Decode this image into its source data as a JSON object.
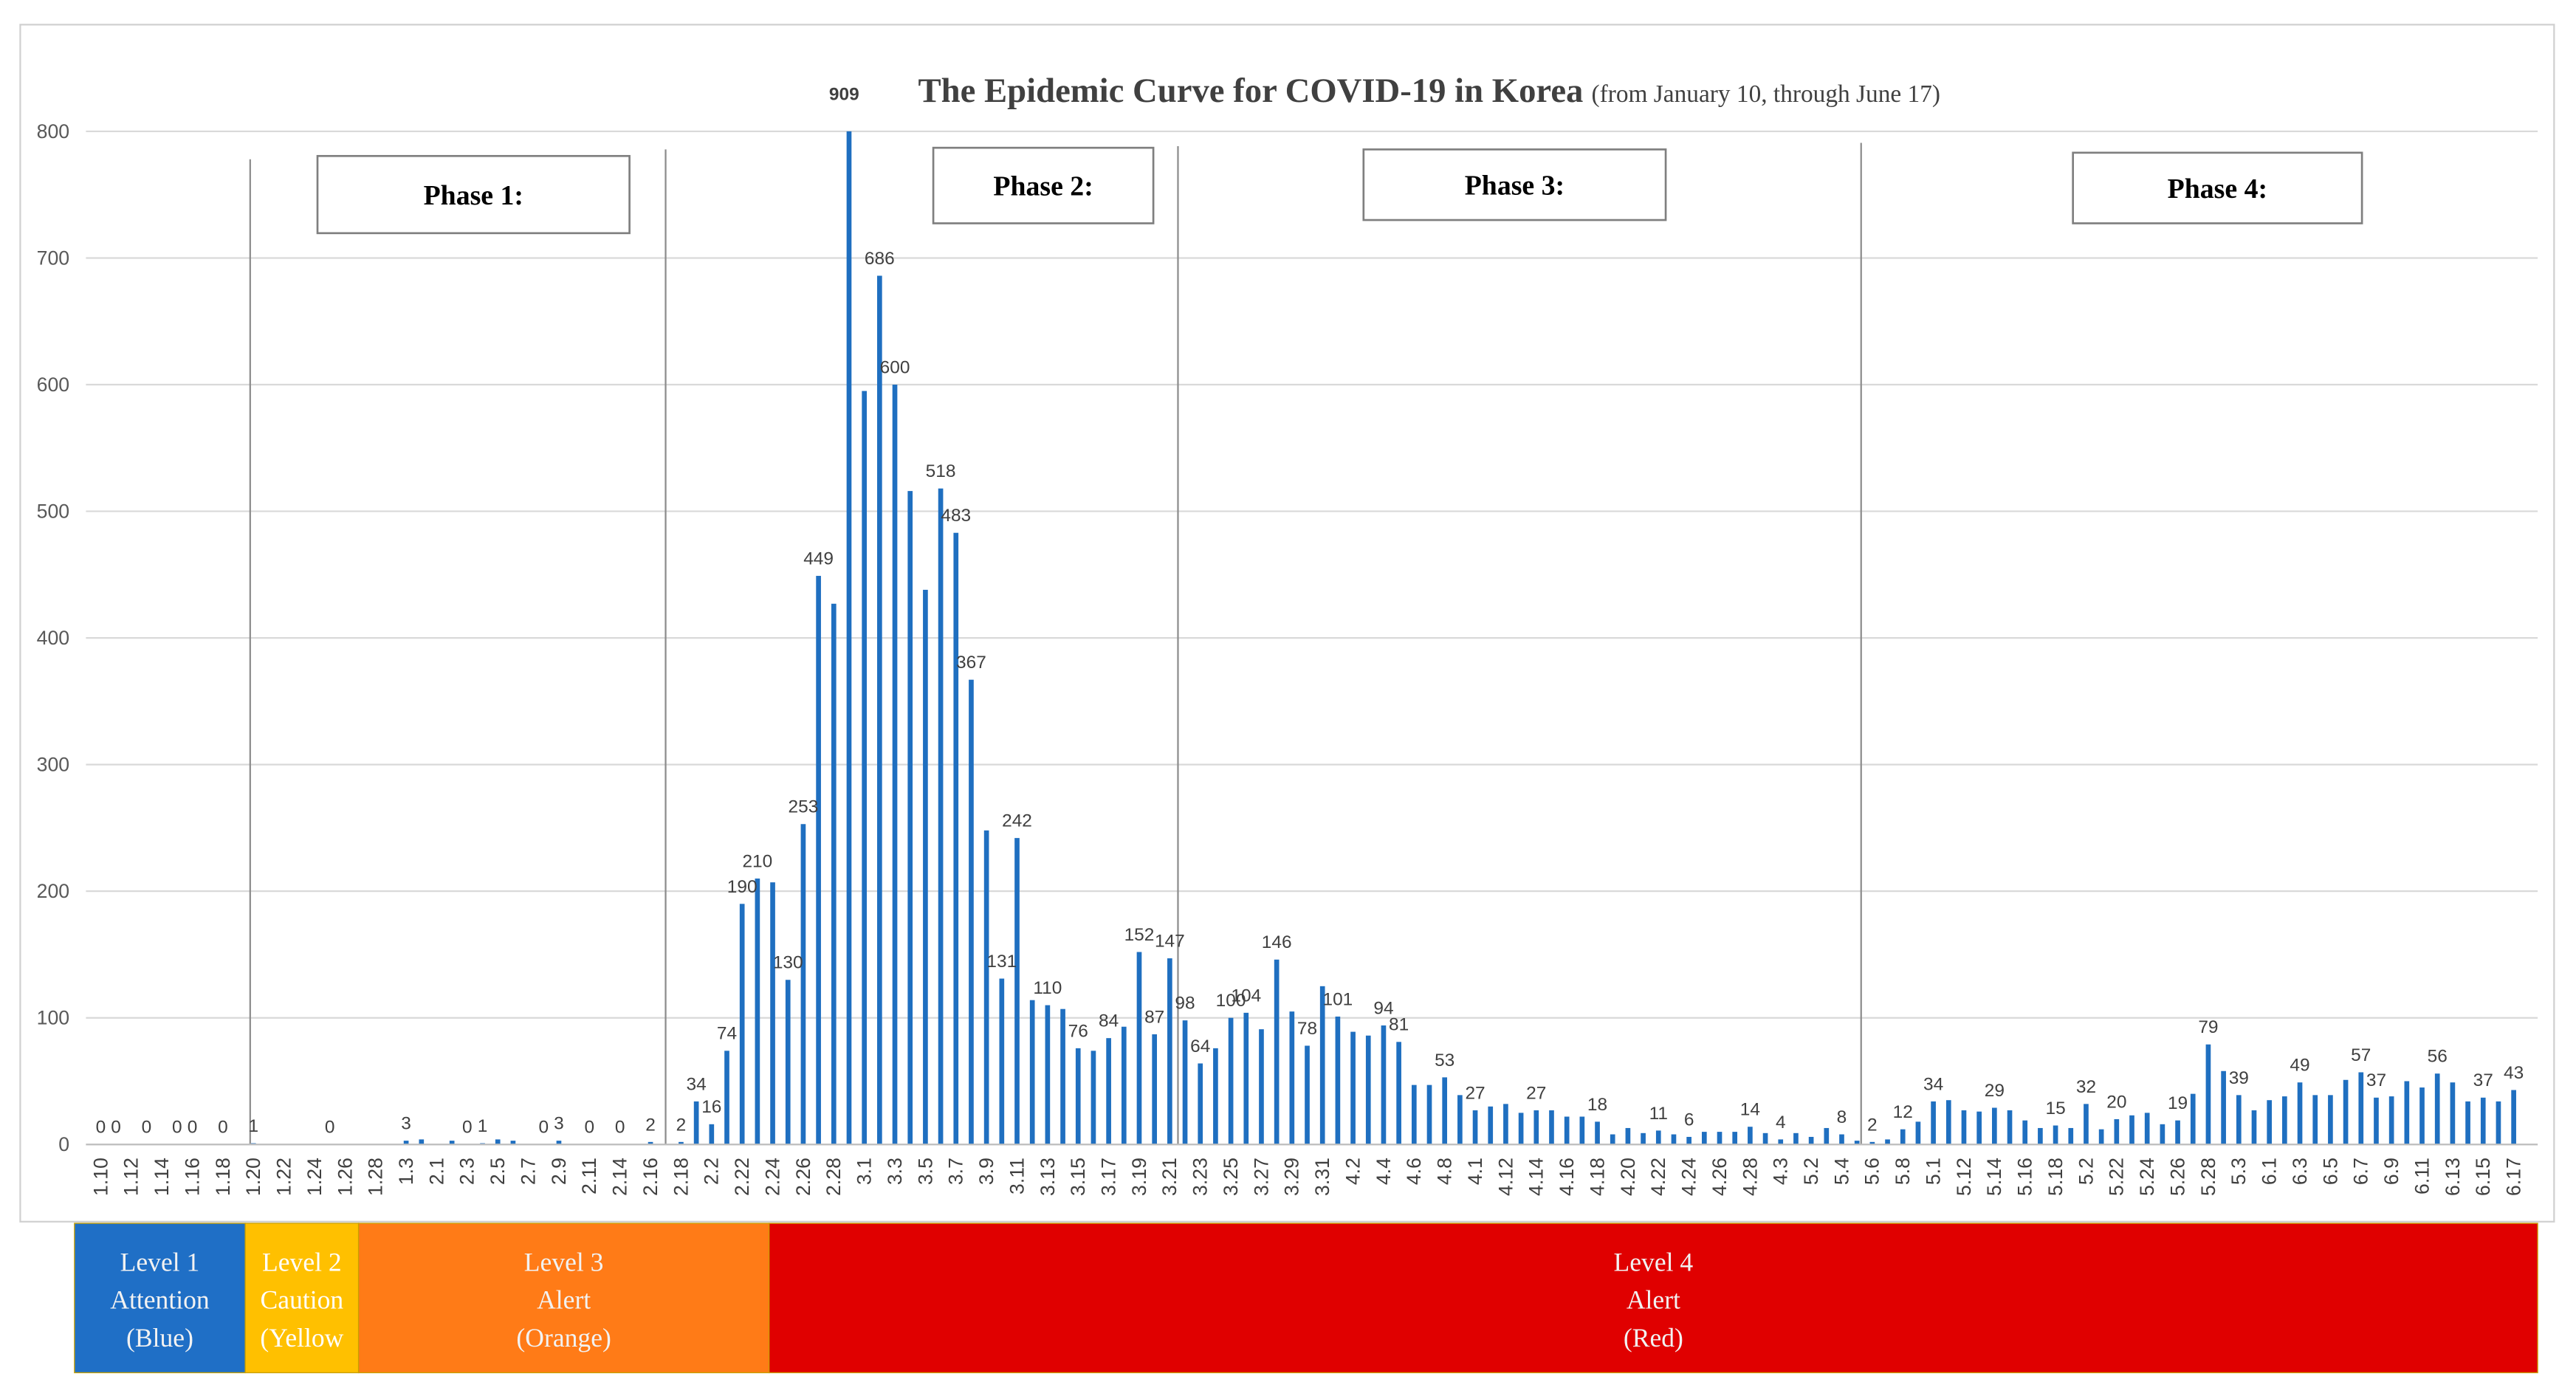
{
  "chart_data": {
    "type": "bar",
    "title": "The Epidemic Curve for COVID-19 in Korea",
    "subtitle": "(from January 10, through June 17)",
    "color": "#1f6fc0",
    "ylim": [
      0,
      800
    ],
    "yticks": [
      0,
      100,
      200,
      300,
      400,
      500,
      600,
      700,
      800
    ],
    "grid": true,
    "phases": [
      "Phase 1:",
      "Phase 2:",
      "Phase 3:",
      "Phase 4:"
    ],
    "alert_levels": [
      {
        "lines": [
          "Level 1",
          "Attention",
          "(Blue)"
        ],
        "color": "#1f6fc6"
      },
      {
        "lines": [
          "Level 2",
          "Caution",
          "(Yellow"
        ],
        "color": "#ffc000"
      },
      {
        "lines": [
          "Level 3",
          "Alert",
          "(Orange)"
        ],
        "color": "#ff7b17"
      },
      {
        "lines": [
          "Level 4",
          "Alert",
          "(Red)"
        ],
        "color": "#e00000"
      }
    ],
    "categories": [
      "1.10",
      null,
      "1.12",
      null,
      "1.14",
      null,
      "1.16",
      null,
      "1.18",
      null,
      "1.20",
      null,
      "1.22",
      null,
      "1.24",
      null,
      "1.26",
      null,
      "1.28",
      null,
      "1.3",
      null,
      "2.1",
      null,
      "2.3",
      null,
      "2.5",
      null,
      "2.7",
      null,
      "2.9",
      null,
      "2.11",
      null,
      "2.14",
      null,
      "2.16",
      null,
      "2.18",
      null,
      "2.2",
      null,
      "2.22",
      null,
      "2.24",
      null,
      "2.26",
      null,
      "2.28",
      null,
      "3.1",
      null,
      "3.3",
      null,
      "3.5",
      null,
      "3.7",
      null,
      "3.9",
      null,
      "3.11",
      null,
      "3.13",
      null,
      "3.15",
      null,
      "3.17",
      null,
      "3.19",
      null,
      "3.21",
      null,
      "3.23",
      null,
      "3.25",
      null,
      "3.27",
      null,
      "3.29",
      null,
      "3.31",
      null,
      "4.2",
      null,
      "4.4",
      null,
      "4.6",
      null,
      "4.8",
      null,
      "4.1",
      null,
      "4.12",
      null,
      "4.14",
      null,
      "4.16",
      null,
      "4.18",
      null,
      "4.20",
      null,
      "4.22",
      null,
      "4.24",
      null,
      "4.26",
      null,
      "4.28",
      null,
      "4.3",
      null,
      "5.2",
      null,
      "5.4",
      null,
      "5.6",
      null,
      "5.8",
      null,
      "5.1",
      null,
      "5.12",
      null,
      "5.14",
      null,
      "5.16",
      null,
      "5.18",
      null,
      "5.2",
      null,
      "5.22",
      null,
      "5.24",
      null,
      "5.26",
      null,
      "5.28",
      null,
      "5.3",
      null,
      "6.1",
      null,
      "6.3",
      null,
      "6.5",
      null,
      "6.7",
      null,
      "6.9",
      null,
      "6.11",
      null,
      "6.13",
      null,
      "6.15",
      null,
      "6.17"
    ],
    "values": [
      0,
      0,
      0,
      0,
      0,
      0,
      0,
      0,
      0,
      0,
      1,
      0,
      0,
      0,
      0,
      0,
      0,
      0,
      0,
      0,
      3,
      4,
      0,
      3,
      0,
      1,
      4,
      3,
      0,
      0,
      3,
      0,
      0,
      0,
      0,
      0,
      2,
      0,
      2,
      34,
      16,
      74,
      190,
      210,
      207,
      130,
      253,
      449,
      427,
      909,
      595,
      686,
      600,
      516,
      438,
      518,
      483,
      367,
      248,
      131,
      242,
      114,
      110,
      107,
      76,
      74,
      84,
      93,
      152,
      87,
      147,
      98,
      64,
      76,
      100,
      104,
      91,
      146,
      105,
      78,
      125,
      101,
      89,
      86,
      94,
      81,
      47,
      47,
      53,
      39,
      27,
      30,
      32,
      25,
      27,
      27,
      22,
      22,
      18,
      8,
      13,
      9,
      11,
      8,
      6,
      10,
      10,
      10,
      14,
      9,
      4,
      9,
      6,
      13,
      8,
      3,
      2,
      4,
      12,
      18,
      34,
      35,
      27,
      26,
      29,
      27,
      19,
      13,
      15,
      13,
      32,
      12,
      20,
      23,
      25,
      16,
      19,
      40,
      79,
      58,
      39,
      27,
      35,
      38,
      49,
      39,
      39,
      51,
      57,
      37,
      38,
      50,
      45,
      56,
      49,
      34,
      37,
      34,
      43
    ],
    "value_labels": [
      "0",
      "0",
      null,
      "0",
      null,
      "0",
      "0",
      null,
      "0",
      null,
      "1",
      null,
      null,
      null,
      null,
      "0",
      null,
      null,
      null,
      null,
      "3",
      null,
      null,
      null,
      "0",
      "1",
      null,
      null,
      null,
      "0",
      "3",
      null,
      "0",
      null,
      "0",
      null,
      "2",
      null,
      "2",
      "34",
      "16",
      "74",
      "190",
      "210",
      null,
      "130",
      "253",
      "449",
      null,
      "909",
      null,
      "686",
      "600",
      null,
      null,
      "518",
      "483",
      "367",
      null,
      "131",
      "242",
      null,
      "110",
      null,
      "76",
      null,
      "84",
      null,
      "152",
      "87",
      "147",
      "98",
      "64",
      null,
      "100",
      "104",
      null,
      "146",
      null,
      "78",
      null,
      "101",
      null,
      null,
      "94",
      "81",
      null,
      null,
      "53",
      null,
      "27",
      null,
      null,
      null,
      "27",
      null,
      null,
      null,
      "18",
      null,
      null,
      null,
      "11",
      null,
      "6",
      null,
      null,
      null,
      "14",
      null,
      "4",
      null,
      null,
      null,
      "8",
      null,
      "2",
      null,
      "12",
      null,
      "34",
      null,
      null,
      null,
      "29",
      null,
      null,
      null,
      "15",
      null,
      "32",
      null,
      "20",
      null,
      null,
      null,
      "19",
      null,
      "79",
      null,
      "39",
      null,
      null,
      null,
      "49",
      null,
      null,
      null,
      "57",
      "37",
      null,
      null,
      null,
      "56",
      null,
      null,
      "37",
      null,
      "43"
    ]
  }
}
